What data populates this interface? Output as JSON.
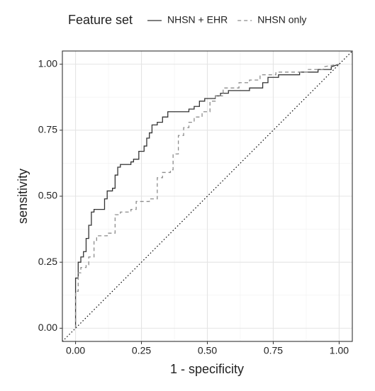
{
  "chart_data": {
    "type": "line",
    "legend_title": "Feature set",
    "xlabel": "1 - specificity",
    "ylabel": "sensitivity",
    "legend_position": "top",
    "grid": true,
    "xlim": [
      -0.05,
      1.05
    ],
    "ylim": [
      -0.05,
      1.05
    ],
    "xticks": [
      {
        "value": 0,
        "label": "0.00"
      },
      {
        "value": 0.25,
        "label": "0.25"
      },
      {
        "value": 0.5,
        "label": "0.50"
      },
      {
        "value": 0.75,
        "label": "0.75"
      },
      {
        "value": 1,
        "label": "1.00"
      }
    ],
    "yticks": [
      {
        "value": 0,
        "label": "0.00"
      },
      {
        "value": 0.25,
        "label": "0.25"
      },
      {
        "value": 0.5,
        "label": "0.50"
      },
      {
        "value": 0.75,
        "label": "0.75"
      },
      {
        "value": 1,
        "label": "1.00"
      }
    ],
    "xminor": [
      0.125,
      0.375,
      0.625,
      0.875
    ],
    "yminor": [
      0.125,
      0.375,
      0.625,
      0.875
    ],
    "reference_line": {
      "slope": 1,
      "intercept": 0
    },
    "series": [
      {
        "name": "NHSN + EHR",
        "color": "#333333",
        "dash": "none",
        "x": [
          0,
          0,
          0.01,
          0.01,
          0.02,
          0.02,
          0.03,
          0.03,
          0.04,
          0.04,
          0.05,
          0.05,
          0.06,
          0.06,
          0.07,
          0.07,
          0.11,
          0.11,
          0.12,
          0.12,
          0.14,
          0.14,
          0.15,
          0.15,
          0.16,
          0.16,
          0.17,
          0.17,
          0.21,
          0.21,
          0.22,
          0.22,
          0.24,
          0.24,
          0.26,
          0.26,
          0.27,
          0.27,
          0.28,
          0.28,
          0.29,
          0.29,
          0.31,
          0.31,
          0.33,
          0.33,
          0.35,
          0.35,
          0.43,
          0.43,
          0.45,
          0.45,
          0.47,
          0.47,
          0.49,
          0.49,
          0.53,
          0.53,
          0.55,
          0.55,
          0.58,
          0.58,
          0.66,
          0.66,
          0.71,
          0.71,
          0.73,
          0.73,
          0.77,
          0.77,
          0.85,
          0.85,
          0.92,
          0.92,
          0.97,
          0.97,
          1.0
        ],
        "values": [
          0,
          0.19,
          0.19,
          0.25,
          0.25,
          0.27,
          0.27,
          0.29,
          0.29,
          0.34,
          0.34,
          0.39,
          0.39,
          0.44,
          0.44,
          0.45,
          0.45,
          0.49,
          0.49,
          0.52,
          0.52,
          0.53,
          0.53,
          0.58,
          0.58,
          0.61,
          0.61,
          0.62,
          0.62,
          0.63,
          0.63,
          0.64,
          0.64,
          0.67,
          0.67,
          0.69,
          0.69,
          0.72,
          0.72,
          0.74,
          0.74,
          0.77,
          0.77,
          0.78,
          0.78,
          0.8,
          0.8,
          0.82,
          0.82,
          0.83,
          0.83,
          0.84,
          0.84,
          0.86,
          0.86,
          0.87,
          0.87,
          0.88,
          0.88,
          0.89,
          0.89,
          0.9,
          0.9,
          0.91,
          0.91,
          0.93,
          0.93,
          0.95,
          0.95,
          0.96,
          0.96,
          0.97,
          0.97,
          0.98,
          0.98,
          0.99,
          1.0
        ]
      },
      {
        "name": "NHSN only",
        "color": "#8c8c8c",
        "dash": "5,4",
        "x": [
          0,
          0,
          0.01,
          0.01,
          0.02,
          0.02,
          0.04,
          0.04,
          0.05,
          0.05,
          0.07,
          0.07,
          0.08,
          0.08,
          0.12,
          0.12,
          0.15,
          0.15,
          0.17,
          0.17,
          0.21,
          0.21,
          0.23,
          0.23,
          0.28,
          0.28,
          0.31,
          0.31,
          0.33,
          0.33,
          0.36,
          0.36,
          0.37,
          0.37,
          0.39,
          0.39,
          0.41,
          0.41,
          0.43,
          0.43,
          0.45,
          0.45,
          0.48,
          0.48,
          0.51,
          0.51,
          0.53,
          0.53,
          0.56,
          0.56,
          0.62,
          0.62,
          0.66,
          0.66,
          0.7,
          0.7,
          0.76,
          0.76,
          0.88,
          0.88,
          0.94,
          0.94,
          1.0
        ],
        "values": [
          0,
          0.14,
          0.14,
          0.21,
          0.21,
          0.23,
          0.23,
          0.24,
          0.24,
          0.27,
          0.27,
          0.33,
          0.33,
          0.35,
          0.35,
          0.36,
          0.36,
          0.43,
          0.43,
          0.44,
          0.44,
          0.45,
          0.45,
          0.48,
          0.48,
          0.49,
          0.49,
          0.57,
          0.57,
          0.59,
          0.59,
          0.6,
          0.6,
          0.66,
          0.66,
          0.73,
          0.73,
          0.76,
          0.76,
          0.78,
          0.78,
          0.8,
          0.8,
          0.82,
          0.82,
          0.86,
          0.86,
          0.88,
          0.88,
          0.91,
          0.91,
          0.93,
          0.93,
          0.94,
          0.94,
          0.96,
          0.96,
          0.97,
          0.97,
          0.98,
          0.98,
          0.99,
          1.0
        ]
      }
    ]
  }
}
